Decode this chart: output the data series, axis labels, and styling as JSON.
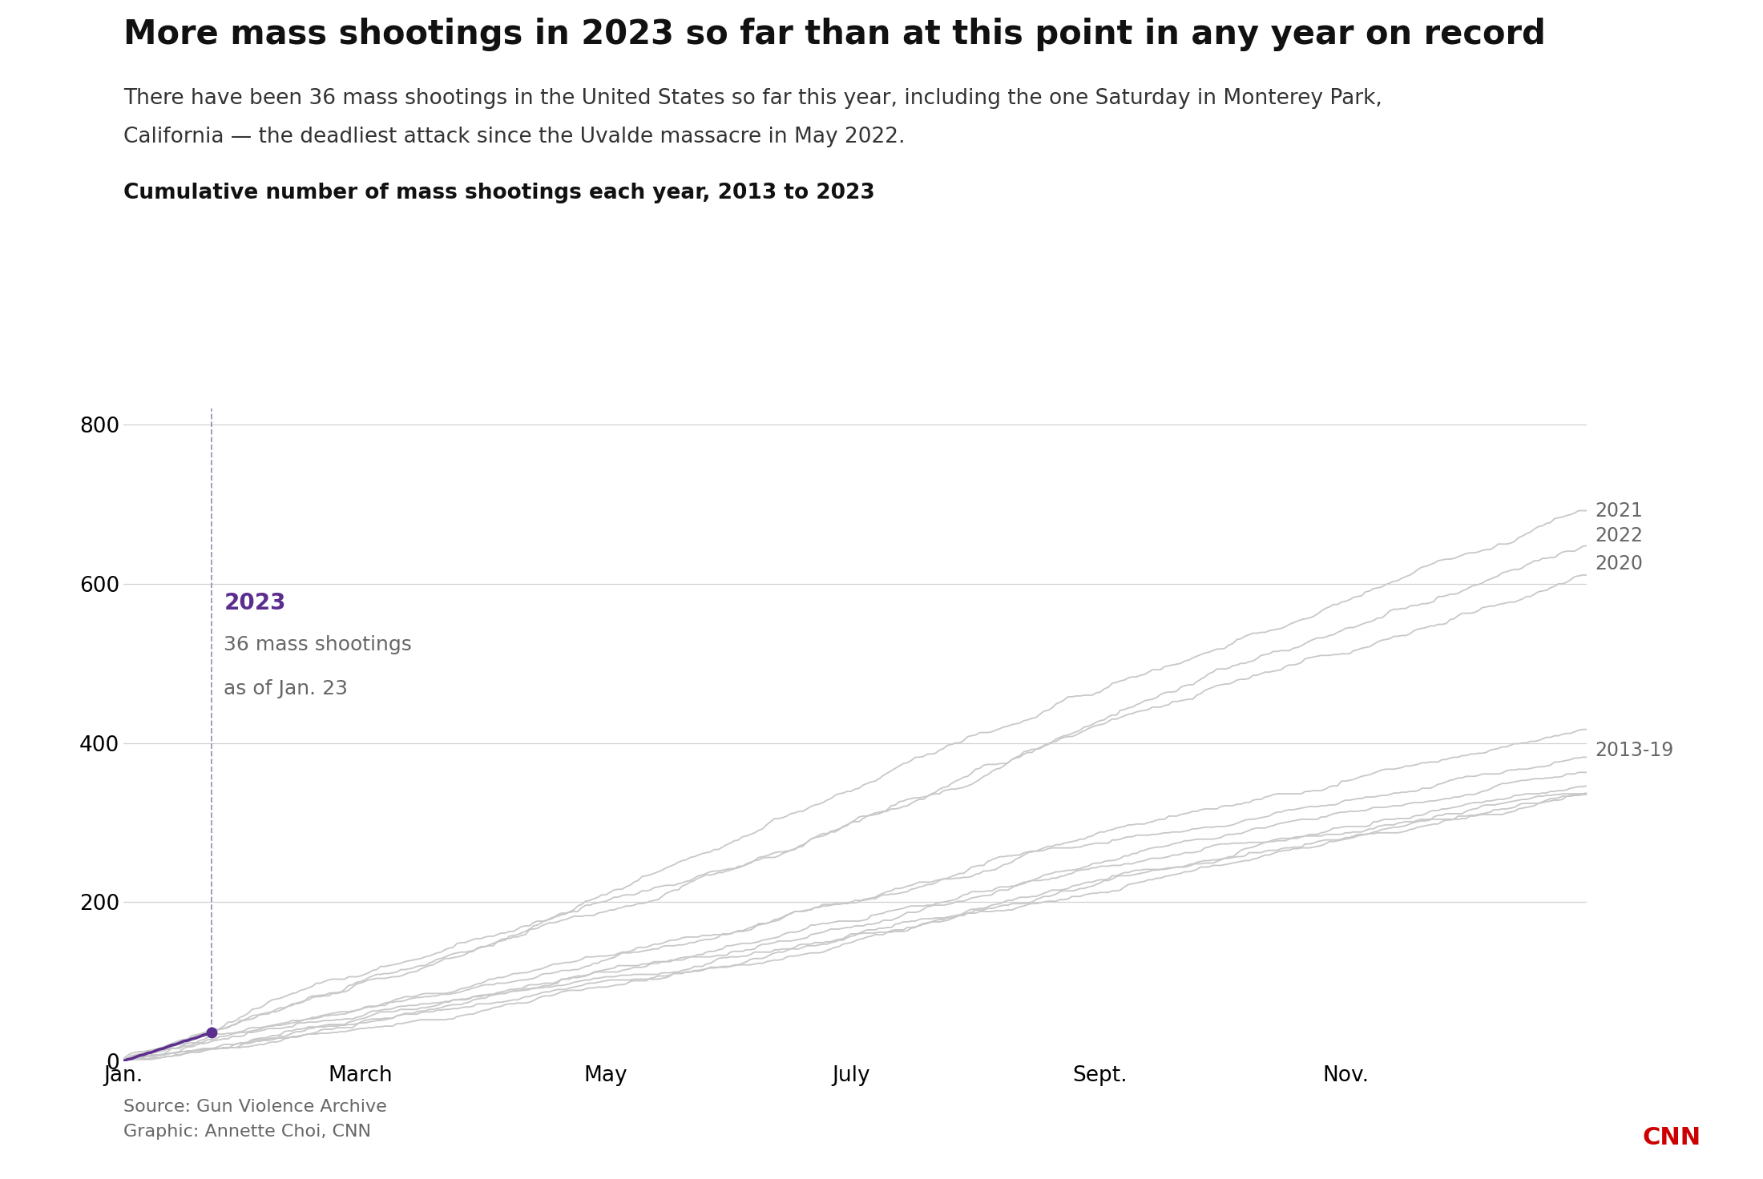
{
  "title": "More mass shootings in 2023 so far than at this point in any year on record",
  "subtitle_line1": "There have been 36 mass shootings in the United States so far this year, including the one Saturday in Monterey Park,",
  "subtitle_line2": "California — the deadliest attack since the Uvalde massacre in May 2022.",
  "chart_label": "Cumulative number of mass shootings each year, 2013 to 2023",
  "source": "Source: Gun Violence Archive",
  "graphic": "Graphic: Annette Choi, CNN",
  "annotation_2023_label": "2023",
  "annotation_2023_sub1": "36 mass shootings",
  "annotation_2023_sub2": "as of Jan. 23",
  "annotation_dot_day": 23,
  "annotation_dot_value": 36,
  "right_labels": {
    "2021": 692,
    "2022": 660,
    "2020": 625,
    "2013-19": 390
  },
  "year_2023_color": "#5b2d8e",
  "dashed_line_color": "#a090c0",
  "gray_color": "#c8c8c8",
  "annotation_text_color": "#666666",
  "background_color": "#ffffff",
  "ylim": [
    0,
    830
  ],
  "yticks": [
    0,
    200,
    400,
    600,
    800
  ],
  "months": [
    "Jan.",
    "March",
    "May",
    "July",
    "Sept.",
    "Nov."
  ],
  "month_positions": [
    1,
    60,
    121,
    182,
    244,
    305
  ],
  "year_totals": {
    "2013": 363,
    "2014": 336,
    "2015": 335,
    "2016": 382,
    "2017": 346,
    "2018": 337,
    "2019": 417,
    "2020": 611,
    "2021": 692,
    "2022": 648
  }
}
